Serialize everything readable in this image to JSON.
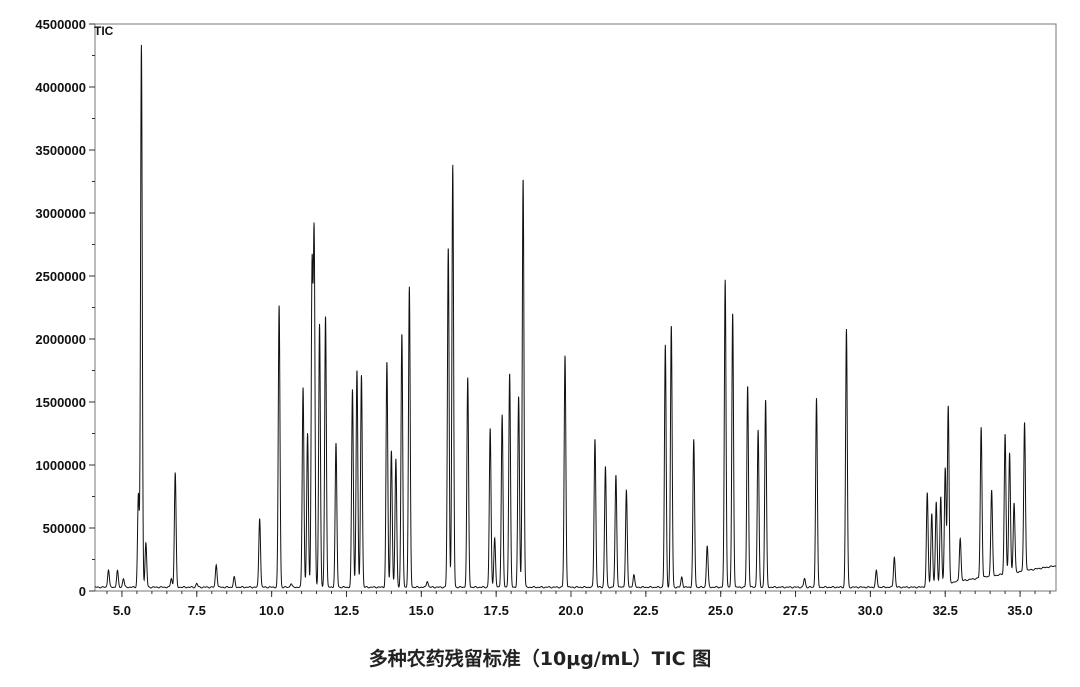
{
  "caption": "多种农药残留标准（10μg/mL）TIC 图",
  "chart_data": {
    "type": "line",
    "title": "",
    "trace_label": "TIC",
    "xlabel": "",
    "ylabel": "",
    "xlim": [
      4.1,
      36.2
    ],
    "ylim": [
      0,
      4500000
    ],
    "x_ticks": [
      5.0,
      7.5,
      10.0,
      12.5,
      15.0,
      17.5,
      20.0,
      22.5,
      25.0,
      27.5,
      30.0,
      32.5,
      35.0
    ],
    "x_tick_labels": [
      "5.0",
      "7.5",
      "10.0",
      "12.5",
      "15.0",
      "17.5",
      "20.0",
      "22.5",
      "25.0",
      "27.5",
      "30.0",
      "32.5",
      "35.0"
    ],
    "y_ticks": [
      0,
      500000,
      1000000,
      1500000,
      2000000,
      2500000,
      3000000,
      3500000,
      4000000,
      4500000
    ],
    "y_tick_labels": [
      "0",
      "500000",
      "1000000",
      "1500000",
      "2000000",
      "2500000",
      "3000000",
      "3500000",
      "4000000",
      "4500000"
    ],
    "grid": false,
    "line_color": "#111111",
    "peaks": [
      [
        4.55,
        170000
      ],
      [
        4.85,
        160000
      ],
      [
        5.05,
        100000
      ],
      [
        5.55,
        770000
      ],
      [
        5.65,
        4330000
      ],
      [
        5.8,
        380000
      ],
      [
        6.65,
        100000
      ],
      [
        6.78,
        940000
      ],
      [
        7.5,
        60000
      ],
      [
        8.15,
        210000
      ],
      [
        8.75,
        110000
      ],
      [
        9.6,
        580000
      ],
      [
        10.25,
        2270000
      ],
      [
        10.65,
        60000
      ],
      [
        11.05,
        1620000
      ],
      [
        11.2,
        1250000
      ],
      [
        11.35,
        2530000
      ],
      [
        11.42,
        2800000
      ],
      [
        11.6,
        2120000
      ],
      [
        11.8,
        2190000
      ],
      [
        12.15,
        1170000
      ],
      [
        12.7,
        1600000
      ],
      [
        12.85,
        1760000
      ],
      [
        13.0,
        1720000
      ],
      [
        13.85,
        1820000
      ],
      [
        14.0,
        1120000
      ],
      [
        14.15,
        1050000
      ],
      [
        14.35,
        2040000
      ],
      [
        14.6,
        2410000
      ],
      [
        15.2,
        80000
      ],
      [
        15.9,
        2730000
      ],
      [
        16.05,
        3380000
      ],
      [
        16.55,
        1690000
      ],
      [
        17.3,
        1290000
      ],
      [
        17.45,
        420000
      ],
      [
        17.7,
        1400000
      ],
      [
        17.95,
        1730000
      ],
      [
        18.25,
        1540000
      ],
      [
        18.4,
        3280000
      ],
      [
        19.8,
        1870000
      ],
      [
        20.8,
        1210000
      ],
      [
        21.15,
        990000
      ],
      [
        21.5,
        920000
      ],
      [
        21.85,
        800000
      ],
      [
        22.1,
        130000
      ],
      [
        23.15,
        1950000
      ],
      [
        23.35,
        2110000
      ],
      [
        23.7,
        110000
      ],
      [
        24.1,
        1200000
      ],
      [
        24.55,
        360000
      ],
      [
        25.15,
        2470000
      ],
      [
        25.4,
        2210000
      ],
      [
        25.9,
        1630000
      ],
      [
        26.25,
        1280000
      ],
      [
        26.5,
        1520000
      ],
      [
        27.8,
        100000
      ],
      [
        28.2,
        1530000
      ],
      [
        29.2,
        2080000
      ],
      [
        30.2,
        160000
      ],
      [
        30.8,
        270000
      ],
      [
        31.9,
        780000
      ],
      [
        32.05,
        620000
      ],
      [
        32.2,
        710000
      ],
      [
        32.35,
        750000
      ],
      [
        32.5,
        980000
      ],
      [
        32.6,
        1470000
      ],
      [
        33.0,
        420000
      ],
      [
        33.7,
        1300000
      ],
      [
        34.05,
        800000
      ],
      [
        34.5,
        1250000
      ],
      [
        34.65,
        1100000
      ],
      [
        34.8,
        700000
      ],
      [
        35.15,
        1340000
      ]
    ]
  }
}
